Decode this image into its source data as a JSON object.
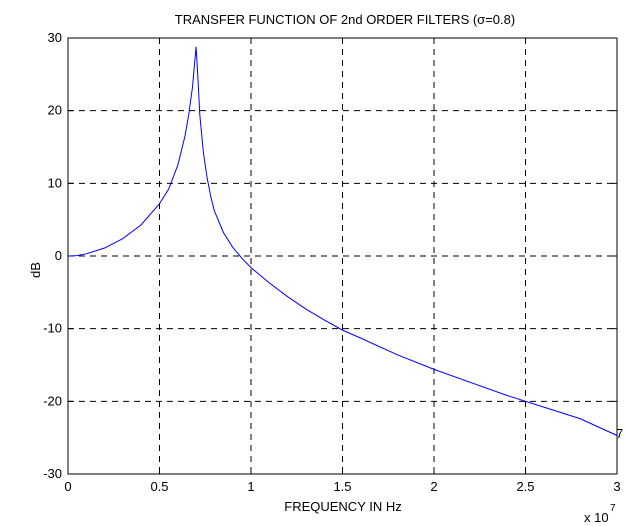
{
  "chart_data": {
    "type": "line",
    "title": "TRANSFER FUNCTION OF 2nd ORDER FILTERS (σ=0.8)",
    "xlabel": "FREQUENCY IN Hz",
    "ylabel": "dB",
    "x_exponent_label": "x 10",
    "x_exponent": "7",
    "edge_annotation": "7",
    "xlim": [
      0,
      3
    ],
    "ylim": [
      -30,
      30
    ],
    "xticks": [
      "0",
      "0.5",
      "1",
      "1.5",
      "2",
      "2.5",
      "3"
    ],
    "yticks": [
      "30",
      "20",
      "10",
      "0",
      "-10",
      "-20",
      "-30"
    ],
    "grid": true,
    "line_color": "#0000ff",
    "series": [
      {
        "x": [
          0,
          0.05,
          0.1,
          0.2,
          0.3,
          0.4,
          0.5,
          0.55,
          0.6,
          0.62,
          0.64,
          0.66,
          0.68,
          0.69,
          0.7,
          0.71,
          0.72,
          0.74,
          0.76,
          0.78,
          0.8,
          0.85,
          0.9,
          0.95,
          1.0,
          1.1,
          1.2,
          1.3,
          1.4,
          1.5,
          1.6,
          1.8,
          2.0,
          2.2,
          2.4,
          2.6,
          2.8,
          3.0
        ],
        "values": [
          0,
          0.05,
          0.3,
          1.1,
          2.4,
          4.3,
          7.2,
          9.2,
          12.5,
          14.5,
          16.6,
          19.5,
          23.2,
          26.0,
          28.8,
          24.5,
          19.5,
          14.2,
          10.8,
          8.2,
          6.2,
          3.2,
          1.2,
          -0.3,
          -1.6,
          -3.7,
          -5.6,
          -7.3,
          -8.8,
          -10.2,
          -11.3,
          -13.6,
          -15.6,
          -17.4,
          -19.2,
          -20.8,
          -22.4,
          -24.7
        ]
      }
    ]
  }
}
